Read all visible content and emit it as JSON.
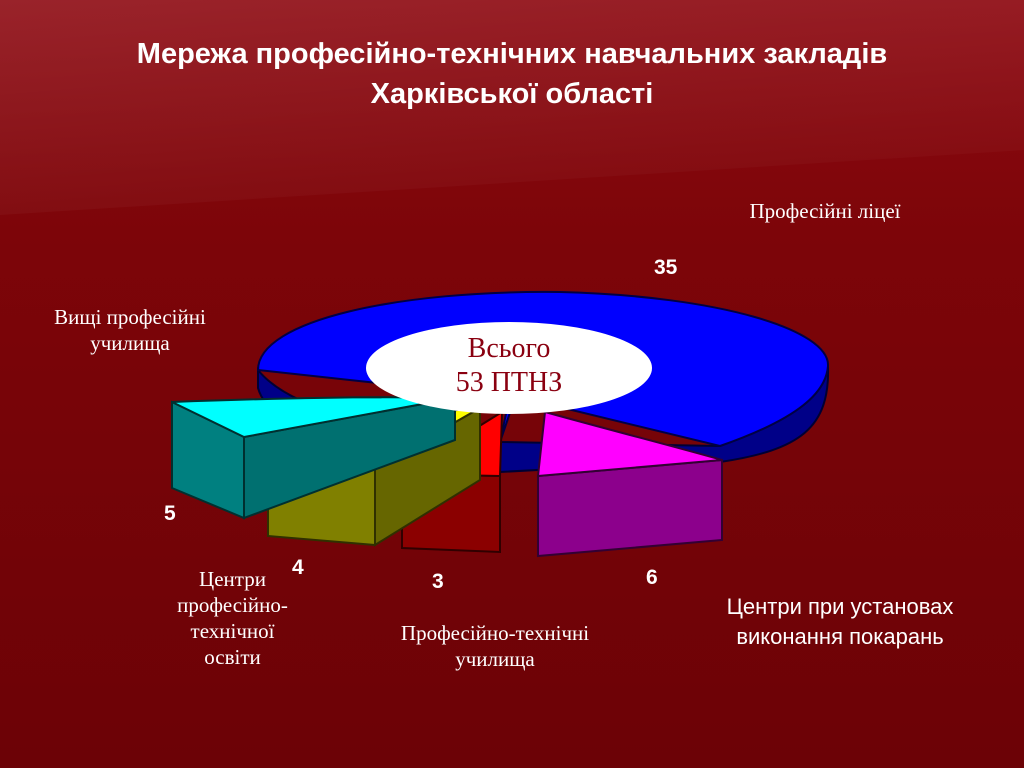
{
  "title": "Мережа професійно-технічних навчальних закладів Харківської області",
  "total": {
    "line1": "Всього",
    "line2": "53 ПТНЗ"
  },
  "colors": {
    "background": "#7d0509",
    "text": "#ffffff"
  },
  "chart_data": {
    "type": "pie",
    "title": "Мережа професійно-технічних навчальних закладів Харківської області",
    "total": 53,
    "slices": [
      {
        "label": "Професійні ліцеї",
        "value": 35,
        "color": "#0000ff"
      },
      {
        "label": "Центри при установах виконання покарань",
        "value": 6,
        "color": "#ff00ff"
      },
      {
        "label": "Професійно-технічні училища",
        "value": 3,
        "color": "#ff0000"
      },
      {
        "label": "Центри професійно-технічної освіти",
        "value": 4,
        "color": "#ffff00"
      },
      {
        "label": "Вищі професійні училища",
        "value": 5,
        "color": "#00ffff"
      }
    ],
    "exploded": true,
    "style": "3d"
  }
}
